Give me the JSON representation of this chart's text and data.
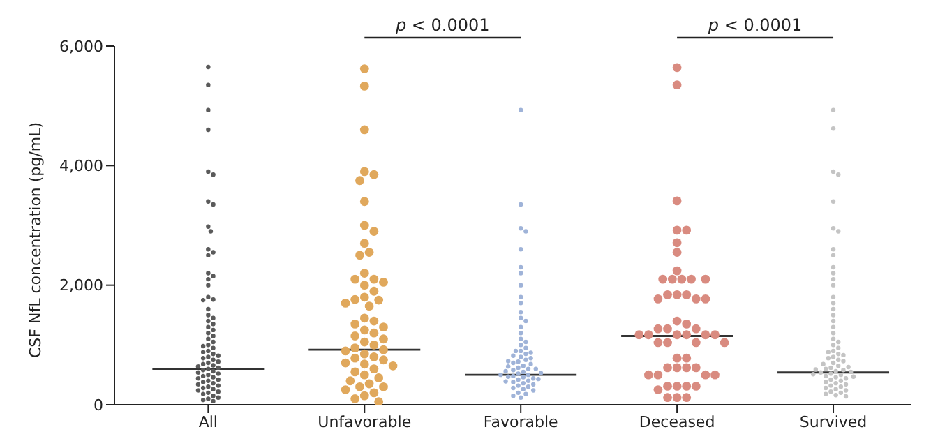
{
  "chart_data": {
    "type": "scatter",
    "ylabel": "CSF NfL concentration (pg/mL)",
    "categories": [
      "All",
      "Unfavorable",
      "Favorable",
      "Deceased",
      "Survived"
    ],
    "ylim": [
      0,
      6000
    ],
    "yticks": [
      {
        "value": 0,
        "label": "0"
      },
      {
        "value": 2000,
        "label": "2,000"
      },
      {
        "value": 4000,
        "label": "4,000"
      },
      {
        "value": 6000,
        "label": "6,000"
      }
    ],
    "series": [
      {
        "type": "box",
        "color": "#333333",
        "boxes": [
          {
            "low": 600,
            "q1": 600,
            "median": 600,
            "q3": 600,
            "high": 600
          },
          {
            "low": 920,
            "q1": 920,
            "median": 920,
            "q3": 920,
            "high": 920
          },
          {
            "low": 500,
            "q1": 500,
            "median": 500,
            "q3": 500,
            "high": 500
          },
          {
            "low": 1150,
            "q1": 1150,
            "median": 1150,
            "q3": 1150,
            "high": 1150
          },
          {
            "low": 540,
            "q1": 540,
            "median": 540,
            "q3": 540,
            "high": 540
          }
        ]
      },
      {
        "type": "scatter",
        "color": "#5a5a5a",
        "x": [
          "All",
          "All",
          "All",
          "All",
          "All",
          "All",
          "All",
          "All",
          "All",
          "All",
          "All",
          "All",
          "All",
          "All",
          "All",
          "All",
          "All",
          "All",
          "All",
          "All",
          "All",
          "All",
          "All",
          "All",
          "All",
          "All",
          "All",
          "All",
          "All",
          "All",
          "All",
          "All",
          "All",
          "All",
          "All",
          "All",
          "All",
          "All",
          "All",
          "All",
          "All",
          "All",
          "All",
          "All",
          "All",
          "All",
          "All",
          "All",
          "All",
          "All",
          "All",
          "All",
          "All",
          "All",
          "All",
          "All",
          "All",
          "All",
          "All",
          "All",
          "All",
          "All",
          "All",
          "All",
          "All",
          "All",
          "All",
          "All",
          "All",
          "All",
          "All",
          "All",
          "All",
          "All"
        ],
        "values": [
          5650,
          5350,
          4930,
          4600,
          3900,
          3850,
          3400,
          3350,
          2980,
          2900,
          2600,
          2550,
          2500,
          2200,
          2150,
          2100,
          2000,
          1800,
          1760,
          1750,
          1600,
          1500,
          1450,
          1400,
          1350,
          1300,
          1250,
          1200,
          1150,
          1100,
          1050,
          1000,
          980,
          950,
          900,
          880,
          850,
          820,
          800,
          780,
          750,
          720,
          700,
          680,
          660,
          640,
          620,
          600,
          580,
          560,
          540,
          520,
          500,
          480,
          460,
          440,
          420,
          400,
          380,
          360,
          340,
          320,
          300,
          280,
          260,
          240,
          220,
          200,
          180,
          150,
          120,
          100,
          80,
          60
        ]
      },
      {
        "type": "scatter",
        "color": "#e0a85c",
        "x": [
          "Unfavorable",
          "Unfavorable",
          "Unfavorable",
          "Unfavorable",
          "Unfavorable",
          "Unfavorable",
          "Unfavorable",
          "Unfavorable",
          "Unfavorable",
          "Unfavorable",
          "Unfavorable",
          "Unfavorable",
          "Unfavorable",
          "Unfavorable",
          "Unfavorable",
          "Unfavorable",
          "Unfavorable",
          "Unfavorable",
          "Unfavorable",
          "Unfavorable",
          "Unfavorable",
          "Unfavorable",
          "Unfavorable",
          "Unfavorable",
          "Unfavorable",
          "Unfavorable",
          "Unfavorable",
          "Unfavorable",
          "Unfavorable",
          "Unfavorable",
          "Unfavorable",
          "Unfavorable",
          "Unfavorable",
          "Unfavorable",
          "Unfavorable",
          "Unfavorable",
          "Unfavorable",
          "Unfavorable",
          "Unfavorable",
          "Unfavorable",
          "Unfavorable",
          "Unfavorable",
          "Unfavorable",
          "Unfavorable",
          "Unfavorable",
          "Unfavorable",
          "Unfavorable",
          "Unfavorable",
          "Unfavorable",
          "Unfavorable",
          "Unfavorable",
          "Unfavorable",
          "Unfavorable",
          "Unfavorable",
          "Unfavorable",
          "Unfavorable"
        ],
        "values": [
          5620,
          5330,
          4600,
          3900,
          3850,
          3750,
          3400,
          3000,
          2900,
          2700,
          2550,
          2500,
          2200,
          2100,
          2100,
          2050,
          2000,
          1900,
          1800,
          1760,
          1750,
          1700,
          1650,
          1450,
          1400,
          1350,
          1300,
          1250,
          1200,
          1150,
          1100,
          1050,
          1000,
          950,
          920,
          900,
          850,
          800,
          780,
          750,
          700,
          680,
          650,
          600,
          550,
          500,
          450,
          400,
          350,
          300,
          300,
          250,
          200,
          150,
          100,
          50
        ]
      },
      {
        "type": "scatter",
        "color": "#9fb3d8",
        "x": [
          "Favorable",
          "Favorable",
          "Favorable",
          "Favorable",
          "Favorable",
          "Favorable",
          "Favorable",
          "Favorable",
          "Favorable",
          "Favorable",
          "Favorable",
          "Favorable",
          "Favorable",
          "Favorable",
          "Favorable",
          "Favorable",
          "Favorable",
          "Favorable",
          "Favorable",
          "Favorable",
          "Favorable",
          "Favorable",
          "Favorable",
          "Favorable",
          "Favorable",
          "Favorable",
          "Favorable",
          "Favorable",
          "Favorable",
          "Favorable",
          "Favorable",
          "Favorable",
          "Favorable",
          "Favorable",
          "Favorable",
          "Favorable",
          "Favorable",
          "Favorable",
          "Favorable",
          "Favorable",
          "Favorable",
          "Favorable",
          "Favorable",
          "Favorable",
          "Favorable",
          "Favorable",
          "Favorable",
          "Favorable",
          "Favorable",
          "Favorable",
          "Favorable",
          "Favorable",
          "Favorable",
          "Favorable",
          "Favorable",
          "Favorable",
          "Favorable",
          "Favorable",
          "Favorable",
          "Favorable",
          "Favorable",
          "Favorable",
          "Favorable"
        ],
        "values": [
          4930,
          3350,
          2950,
          2900,
          2600,
          2300,
          2200,
          2000,
          1800,
          1700,
          1550,
          1450,
          1400,
          1300,
          1200,
          1100,
          1050,
          1000,
          950,
          900,
          850,
          800,
          750,
          720,
          700,
          650,
          620,
          600,
          580,
          550,
          520,
          500,
          480,
          460,
          440,
          420,
          400,
          380,
          360,
          340,
          320,
          300,
          280,
          260,
          240,
          200,
          180,
          150,
          120,
          900,
          870,
          820,
          780,
          730,
          680,
          640,
          600,
          560,
          530,
          500,
          470,
          430,
          390
        ]
      },
      {
        "type": "scatter",
        "color": "#d98b80",
        "x": [
          "Deceased",
          "Deceased",
          "Deceased",
          "Deceased",
          "Deceased",
          "Deceased",
          "Deceased",
          "Deceased",
          "Deceased",
          "Deceased",
          "Deceased",
          "Deceased",
          "Deceased",
          "Deceased",
          "Deceased",
          "Deceased",
          "Deceased",
          "Deceased",
          "Deceased",
          "Deceased",
          "Deceased",
          "Deceased",
          "Deceased",
          "Deceased",
          "Deceased",
          "Deceased",
          "Deceased",
          "Deceased",
          "Deceased",
          "Deceased",
          "Deceased",
          "Deceased",
          "Deceased",
          "Deceased",
          "Deceased",
          "Deceased",
          "Deceased",
          "Deceased",
          "Deceased",
          "Deceased",
          "Deceased",
          "Deceased",
          "Deceased",
          "Deceased",
          "Deceased",
          "Deceased",
          "Deceased",
          "Deceased",
          "Deceased",
          "Deceased",
          "Deceased",
          "Deceased"
        ],
        "values": [
          5640,
          5350,
          3410,
          2920,
          2920,
          2710,
          2550,
          2240,
          2100,
          2100,
          2100,
          2100,
          2100,
          1840,
          1840,
          1840,
          1770,
          1770,
          1770,
          1400,
          1350,
          1270,
          1270,
          1270,
          1170,
          1170,
          1170,
          1170,
          1170,
          1170,
          1040,
          1040,
          1040,
          1040,
          780,
          780,
          620,
          620,
          620,
          620,
          500,
          500,
          500,
          500,
          310,
          310,
          310,
          310,
          250,
          120,
          120,
          120
        ]
      },
      {
        "type": "scatter",
        "color": "#c4c4c4",
        "x": [
          "Survived",
          "Survived",
          "Survived",
          "Survived",
          "Survived",
          "Survived",
          "Survived",
          "Survived",
          "Survived",
          "Survived",
          "Survived",
          "Survived",
          "Survived",
          "Survived",
          "Survived",
          "Survived",
          "Survived",
          "Survived",
          "Survived",
          "Survived",
          "Survived",
          "Survived",
          "Survived",
          "Survived",
          "Survived",
          "Survived",
          "Survived",
          "Survived",
          "Survived",
          "Survived",
          "Survived",
          "Survived",
          "Survived",
          "Survived",
          "Survived",
          "Survived",
          "Survived",
          "Survived",
          "Survived",
          "Survived",
          "Survived",
          "Survived",
          "Survived",
          "Survived",
          "Survived",
          "Survived",
          "Survived",
          "Survived",
          "Survived",
          "Survived",
          "Survived",
          "Survived",
          "Survived",
          "Survived",
          "Survived",
          "Survived",
          "Survived",
          "Survived",
          "Survived",
          "Survived",
          "Survived",
          "Survived",
          "Survived",
          "Survived",
          "Survived"
        ],
        "values": [
          4930,
          4620,
          3900,
          3850,
          3400,
          2950,
          2900,
          2600,
          2500,
          2300,
          2200,
          2100,
          2000,
          1800,
          1700,
          1600,
          1500,
          1400,
          1300,
          1200,
          1100,
          1050,
          1000,
          950,
          900,
          850,
          800,
          750,
          700,
          650,
          620,
          600,
          580,
          560,
          540,
          520,
          500,
          480,
          460,
          440,
          420,
          400,
          380,
          360,
          340,
          320,
          300,
          280,
          260,
          240,
          220,
          200,
          180,
          160,
          140,
          880,
          830,
          780,
          730,
          680,
          630,
          590,
          550,
          510,
          470
        ]
      }
    ],
    "annotations": [
      "p < 0.0001",
      "p < 0.0001"
    ]
  }
}
